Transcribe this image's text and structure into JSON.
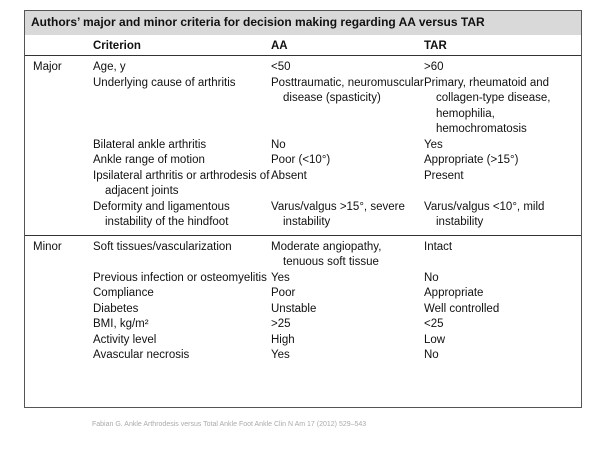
{
  "title": "Authors’ major and minor criteria for decision making regarding AA versus TAR",
  "header": [
    "Criterion",
    "AA",
    "TAR"
  ],
  "sections": [
    {
      "group": "Major",
      "rows": [
        [
          "Age, y",
          "<50",
          ">60"
        ],
        [
          "Underlying cause of arthritis",
          "Posttraumatic, neuromuscular disease (spasticity)",
          "Primary, rheumatoid and collagen-type disease, hemophilia, hemochromatosis"
        ],
        [
          "Bilateral ankle arthritis",
          "No",
          "Yes"
        ],
        [
          "Ankle range of motion",
          "Poor (<10°)",
          "Appropriate (>15°)"
        ],
        [
          "Ipsilateral arthritis or arthrodesis of adjacent joints",
          "Absent",
          "Present"
        ],
        [
          "Deformity and ligamentous instability of the hindfoot",
          "Varus/valgus >15°, severe instability",
          "Varus/valgus <10°, mild instability"
        ]
      ]
    },
    {
      "group": "Minor",
      "rows": [
        [
          "Soft tissues/vascularization",
          "Moderate angiopathy, tenuous soft tissue",
          "Intact"
        ],
        [
          "Previous infection or osteomyelitis",
          "Yes",
          "No"
        ],
        [
          "Compliance",
          "Poor",
          "Appropriate"
        ],
        [
          "Diabetes",
          "Unstable",
          "Well controlled"
        ],
        [
          "BMI, kg/m²",
          ">25",
          "<25"
        ],
        [
          "Activity level",
          "High",
          "Low"
        ],
        [
          "Avascular necrosis",
          "Yes",
          "No"
        ]
      ]
    }
  ],
  "footer": "Fabian G. Ankle Arthrodesis versus Total Ankle Foot Ankle Clin N Am 17 (2012) 529–543"
}
